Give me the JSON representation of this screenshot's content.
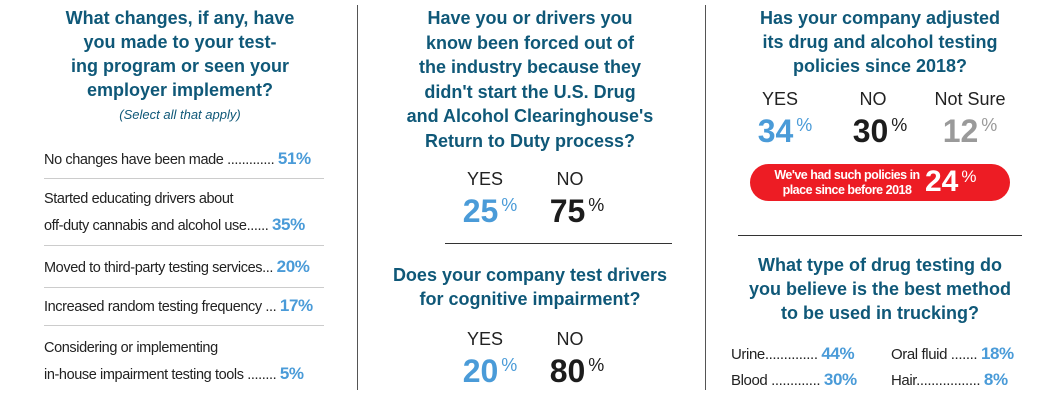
{
  "col1": {
    "question": [
      "What changes, if any, have",
      "you made to your test-",
      "ing program or seen your",
      "employer implement?"
    ],
    "note": "(Select all that apply)",
    "items": [
      {
        "lines": [
          "No changes have been made ............."
        ],
        "pct": "51%"
      },
      {
        "lines": [
          "Started educating drivers about",
          "off-duty cannabis and alcohol use......"
        ],
        "pct": "35%"
      },
      {
        "lines": [
          "Moved to third-party testing services..."
        ],
        "pct": "20%"
      },
      {
        "lines": [
          "Increased random testing frequency ..."
        ],
        "pct": "17%"
      },
      {
        "lines": [
          "Considering or implementing",
          "in-house impairment testing tools ........"
        ],
        "pct": "5%"
      }
    ]
  },
  "col2": {
    "q1": [
      "Have you or drivers you",
      "know been forced out of",
      "the industry because they",
      "didn't start the U.S. Drug",
      "and Alcohol Clearinghouse's",
      "Return to Duty process?"
    ],
    "q1_answers": [
      {
        "label": "YES",
        "value": "25"
      },
      {
        "label": "NO",
        "value": "75"
      }
    ],
    "q2": [
      "Does your company test drivers",
      "for cognitive impairment?"
    ],
    "q2_answers": [
      {
        "label": "YES",
        "value": "20"
      },
      {
        "label": "NO",
        "value": "80"
      }
    ],
    "pct_sign": "%"
  },
  "col3": {
    "q1": [
      "Has your company adjusted",
      "its drug and alcohol testing",
      "policies since 2018?"
    ],
    "q1_answers": [
      {
        "label": "YES",
        "value": "34"
      },
      {
        "label": "NO",
        "value": "30"
      },
      {
        "label": "Not Sure",
        "value": "12"
      }
    ],
    "pill": {
      "text": [
        "We've had such policies in",
        "place since before 2018"
      ],
      "value": "24",
      "color": "#ed1c24"
    },
    "q2": [
      "What type of drug testing do",
      "you believe is the best method",
      "to be used in trucking?"
    ],
    "methods": [
      {
        "label": "Urine..............",
        "pct": "44%"
      },
      {
        "label": "Oral fluid .......",
        "pct": "18%"
      },
      {
        "label": "Blood .............",
        "pct": "30%"
      },
      {
        "label": "Hair.................",
        "pct": "8%"
      }
    ],
    "pct_sign": "%"
  }
}
